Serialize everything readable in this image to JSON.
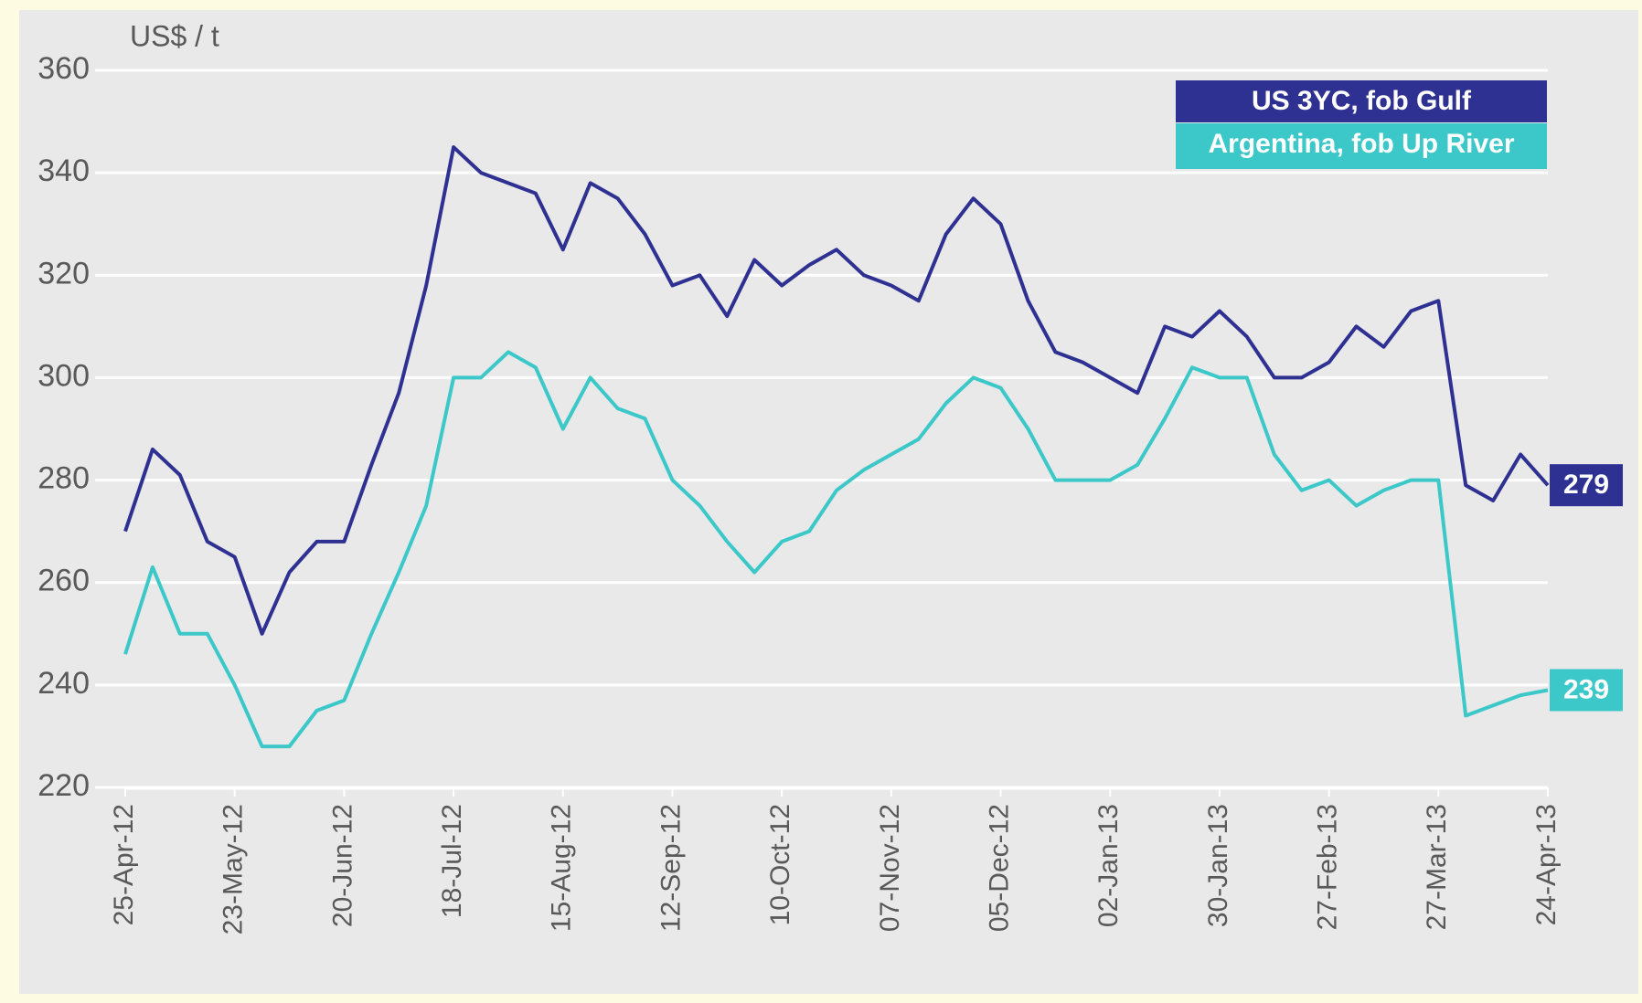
{
  "chart_data": {
    "type": "line",
    "y_axis_label": "US$ / t",
    "x": [
      "2012-04-25",
      "2012-05-02",
      "2012-05-09",
      "2012-05-16",
      "2012-05-23",
      "2012-05-30",
      "2012-06-06",
      "2012-06-13",
      "2012-06-20",
      "2012-06-27",
      "2012-07-04",
      "2012-07-11",
      "2012-07-18",
      "2012-07-25",
      "2012-08-01",
      "2012-08-08",
      "2012-08-15",
      "2012-08-22",
      "2012-08-29",
      "2012-09-05",
      "2012-09-12",
      "2012-09-19",
      "2012-09-26",
      "2012-10-03",
      "2012-10-10",
      "2012-10-17",
      "2012-10-24",
      "2012-10-31",
      "2012-11-07",
      "2012-11-14",
      "2012-11-21",
      "2012-11-28",
      "2012-12-05",
      "2012-12-12",
      "2012-12-19",
      "2012-12-26",
      "2013-01-02",
      "2013-01-09",
      "2013-01-16",
      "2013-01-23",
      "2013-01-30",
      "2013-02-06",
      "2013-02-13",
      "2013-02-20",
      "2013-02-27",
      "2013-03-06",
      "2013-03-13",
      "2013-03-20",
      "2013-03-27",
      "2013-04-03",
      "2013-04-10",
      "2013-04-17",
      "2013-04-24"
    ],
    "series": [
      {
        "name": "US 3YC, fob Gulf",
        "color": "#2e3192",
        "values": [
          270,
          286,
          281,
          268,
          265,
          250,
          262,
          268,
          268,
          283,
          297,
          318,
          345,
          340,
          338,
          336,
          325,
          338,
          335,
          328,
          318,
          320,
          312,
          323,
          318,
          322,
          325,
          320,
          318,
          315,
          328,
          335,
          330,
          315,
          305,
          303,
          300,
          297,
          310,
          308,
          313,
          308,
          300,
          300,
          303,
          310,
          306,
          313,
          315,
          279,
          276,
          285,
          279
        ]
      },
      {
        "name": "Argentina, fob Up River",
        "color": "#3cc8c8",
        "values": [
          246,
          263,
          250,
          250,
          240,
          228,
          228,
          235,
          237,
          250,
          262,
          275,
          300,
          300,
          305,
          302,
          290,
          300,
          294,
          292,
          280,
          275,
          268,
          262,
          268,
          270,
          278,
          282,
          285,
          288,
          295,
          300,
          298,
          290,
          280,
          280,
          280,
          283,
          292,
          302,
          300,
          300,
          285,
          278,
          280,
          275,
          278,
          280,
          280,
          234,
          236,
          238,
          239
        ]
      }
    ],
    "xlim": [
      "2012-04-25",
      "2013-04-24"
    ],
    "xticks": [
      {
        "value": "2012-04-25",
        "label": "25-Apr-12"
      },
      {
        "value": "2012-05-23",
        "label": "23-May-12"
      },
      {
        "value": "2012-06-20",
        "label": "20-Jun-12"
      },
      {
        "value": "2012-07-18",
        "label": "18-Jul-12"
      },
      {
        "value": "2012-08-15",
        "label": "15-Aug-12"
      },
      {
        "value": "2012-09-12",
        "label": "12-Sep-12"
      },
      {
        "value": "2012-10-10",
        "label": "10-Oct-12"
      },
      {
        "value": "2012-11-07",
        "label": "07-Nov-12"
      },
      {
        "value": "2012-12-05",
        "label": "05-Dec-12"
      },
      {
        "value": "2013-01-02",
        "label": "02-Jan-13"
      },
      {
        "value": "2013-01-30",
        "label": "30-Jan-13"
      },
      {
        "value": "2013-02-27",
        "label": "27-Feb-13"
      },
      {
        "value": "2013-03-27",
        "label": "27-Mar-13"
      },
      {
        "value": "2013-04-24",
        "label": "24-Apr-13"
      }
    ],
    "ylim": [
      220,
      360
    ],
    "yticks": [
      220,
      240,
      260,
      280,
      300,
      320,
      340,
      360
    ],
    "grid": true,
    "legend": "upper right"
  }
}
